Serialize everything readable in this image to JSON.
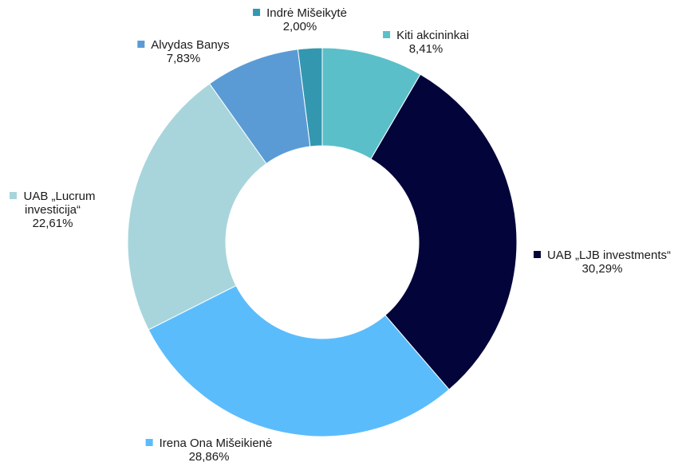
{
  "chart_data": {
    "type": "donut",
    "categories": [
      "Kiti akcininkai",
      "UAB „LJB investments“",
      "Irena Ona Mišeikienė",
      "UAB „Lucrum investicija“",
      "Alvydas Banys",
      "Indrė Mišeikytė"
    ],
    "values": [
      8.41,
      30.29,
      28.86,
      22.61,
      7.83,
      2.0
    ],
    "value_labels": [
      "8,41%",
      "30,29%",
      "28,86%",
      "22,61%",
      "7,83%",
      "2,00%"
    ],
    "colors": [
      "#5bbfc9",
      "#03053a",
      "#5bbcfc",
      "#a8d5dc",
      "#5b9bd5",
      "#3497b0"
    ]
  }
}
